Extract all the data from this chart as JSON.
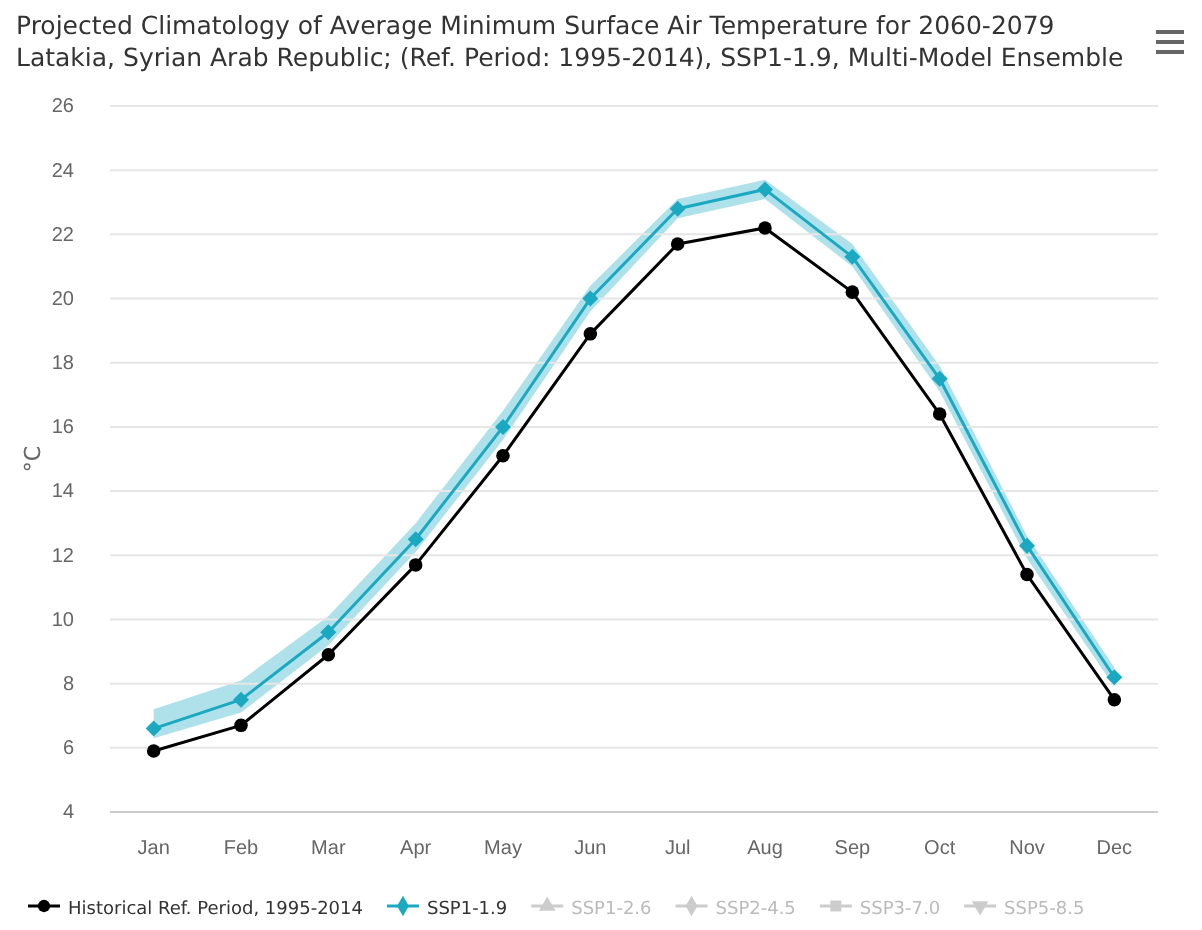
{
  "chart_data": {
    "type": "line",
    "title": "Projected Climatology of Average Minimum Surface Air Temperature for 2060-2079",
    "subtitle": "Latakia, Syrian Arab Republic; (Ref. Period: 1995-2014), SSP1-1.9, Multi-Model Ensemble",
    "ylabel": "°C",
    "categories": [
      "Jan",
      "Feb",
      "Mar",
      "Apr",
      "May",
      "Jun",
      "Jul",
      "Aug",
      "Sep",
      "Oct",
      "Nov",
      "Dec"
    ],
    "series": [
      {
        "name": "Historical Ref. Period, 1995-2014",
        "color": "#000000",
        "marker": "circle",
        "values": [
          5.9,
          6.7,
          8.9,
          11.7,
          15.1,
          18.9,
          21.7,
          22.2,
          20.2,
          16.4,
          11.4,
          7.5
        ]
      },
      {
        "name": "SSP1-1.9",
        "color": "#1ba9c2",
        "marker": "diamond",
        "values": [
          6.6,
          7.5,
          9.6,
          12.5,
          16.0,
          20.0,
          22.8,
          23.4,
          21.3,
          17.5,
          12.3,
          8.2
        ],
        "lower": [
          6.3,
          7.1,
          9.2,
          12.1,
          15.6,
          19.6,
          22.5,
          23.1,
          21.0,
          17.1,
          11.9,
          7.9
        ],
        "upper": [
          7.2,
          8.1,
          10.1,
          13.0,
          16.5,
          20.4,
          23.1,
          23.7,
          21.7,
          17.9,
          12.6,
          8.5
        ]
      },
      {
        "name": "SSP1-2.6",
        "color": "#cccccc",
        "marker": "triangle",
        "values": [
          null,
          null,
          null,
          null,
          null,
          null,
          null,
          null,
          null,
          null,
          null,
          null
        ]
      },
      {
        "name": "SSP2-4.5",
        "color": "#cccccc",
        "marker": "diamond",
        "values": [
          null,
          null,
          null,
          null,
          null,
          null,
          null,
          null,
          null,
          null,
          null,
          null
        ]
      },
      {
        "name": "SSP3-7.0",
        "color": "#cccccc",
        "marker": "square",
        "values": [
          null,
          null,
          null,
          null,
          null,
          null,
          null,
          null,
          null,
          null,
          null,
          null
        ]
      },
      {
        "name": "SSP5-8.5",
        "color": "#cccccc",
        "marker": "triangle-down",
        "values": [
          null,
          null,
          null,
          null,
          null,
          null,
          null,
          null,
          null,
          null,
          null,
          null
        ]
      }
    ],
    "ylim": [
      4,
      26
    ],
    "yticks": [
      4,
      6,
      8,
      10,
      12,
      14,
      16,
      18,
      20,
      22,
      24,
      26
    ],
    "grid": "y",
    "legend": "bottom",
    "line_style": "solid"
  }
}
